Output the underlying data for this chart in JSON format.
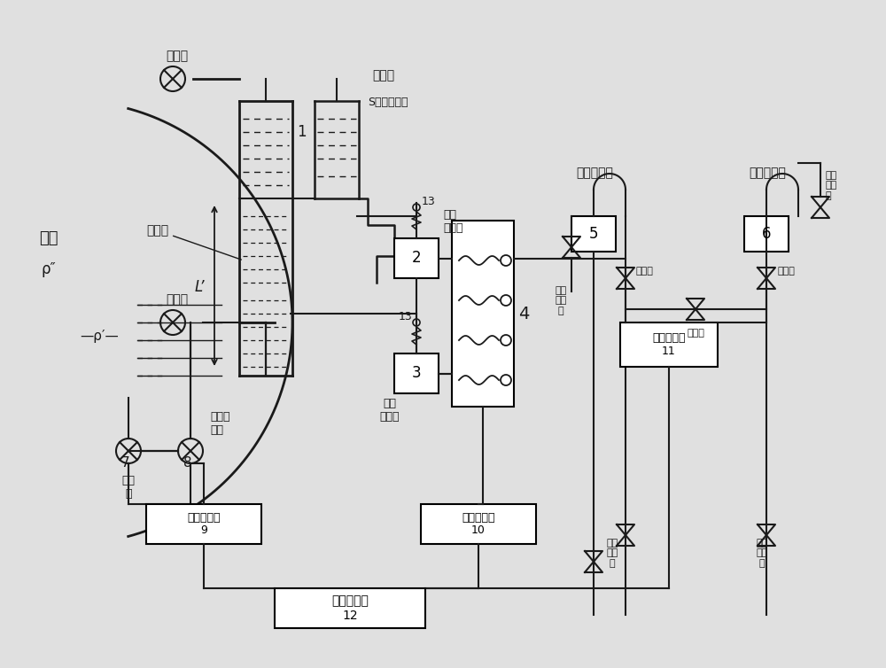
{
  "bg_color": "#e0e0e0",
  "line_color": "#1a1a1a",
  "labels": {
    "qibao": "汽包",
    "rho_pp": "ρ″",
    "rho_p": "ρ′",
    "qice_men": "汽侧门",
    "shui_men": "水侧门",
    "zhengya_shi": "正压室",
    "fuya_shi": "负压室",
    "s_tube": "S正压参比管",
    "num1": "1",
    "num2": "2",
    "num3": "3",
    "num4": "4",
    "num5": "5",
    "num6": "6",
    "num7": "7",
    "num8": "8",
    "num13": "13",
    "comp9": "压力变压器\n9",
    "comp10": "温度变送器\n10",
    "comp11": "差压变压器\n11",
    "comp12": "全程水位表\n12",
    "zhengya_collector": "正压集气器",
    "fuya_collector": "负压集气器",
    "zhengya_paiqimen": "正压\n排气\n门",
    "fuya_paiqimen": "负压\n排气\n门",
    "zhengya_men": "正压门",
    "fuya_men": "负压门",
    "pingheng_men": "平衡门",
    "zhengya_paiwumen": "正压\n排污\n门",
    "fuya_paiwumen": "负压\n排污\n门",
    "jiayanmen": "校验\n门",
    "liyangmen": "压力取\n样门",
    "L_prime": "L’",
    "zhengya_hengwen": "正压\n恒温器",
    "fuya_hengwen": "负压\n恒温器"
  }
}
